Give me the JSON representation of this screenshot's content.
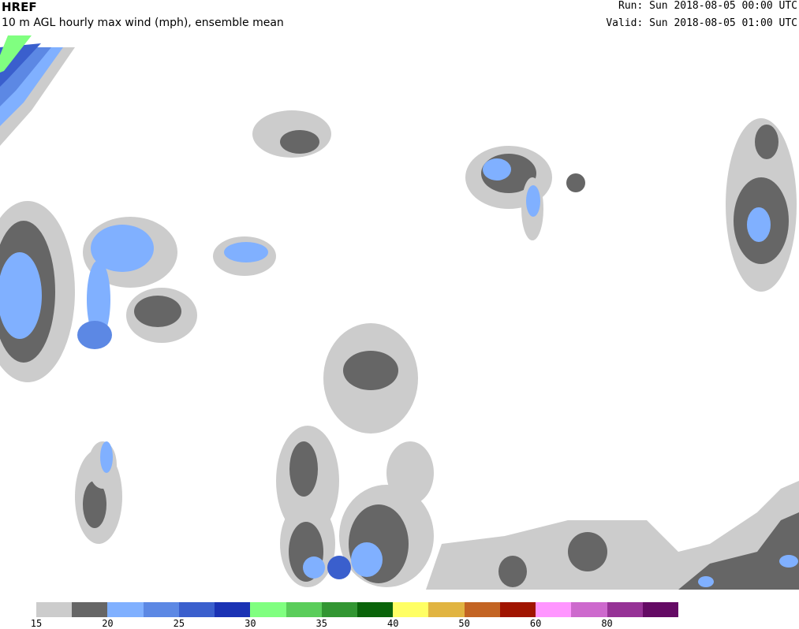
{
  "header": {
    "model": "HREF",
    "field": "10 m AGL hourly max wind (mph), ensemble mean",
    "run": "Run: Sun 2018-08-05 00:00 UTC",
    "valid": "Valid: Sun 2018-08-05 01:00 UTC"
  },
  "colorbar": {
    "colors": [
      "#cccccc",
      "#666666",
      "#80b0ff",
      "#5c88e4",
      "#3a5fcd",
      "#1a32b4",
      "#80ff80",
      "#5acd5a",
      "#329632",
      "#0a640a",
      "#ffff64",
      "#e1b441",
      "#c36423",
      "#a01400",
      "#ff96ff",
      "#cd69cd",
      "#963296",
      "#640a64"
    ],
    "tick_labels": [
      {
        "label": "15",
        "bin": 0
      },
      {
        "label": "20",
        "bin": 2
      },
      {
        "label": "25",
        "bin": 4
      },
      {
        "label": "30",
        "bin": 6
      },
      {
        "label": "35",
        "bin": 8
      },
      {
        "label": "40",
        "bin": 10
      },
      {
        "label": "50",
        "bin": 12
      },
      {
        "label": "60",
        "bin": 14
      },
      {
        "label": "80",
        "bin": 16
      }
    ]
  }
}
